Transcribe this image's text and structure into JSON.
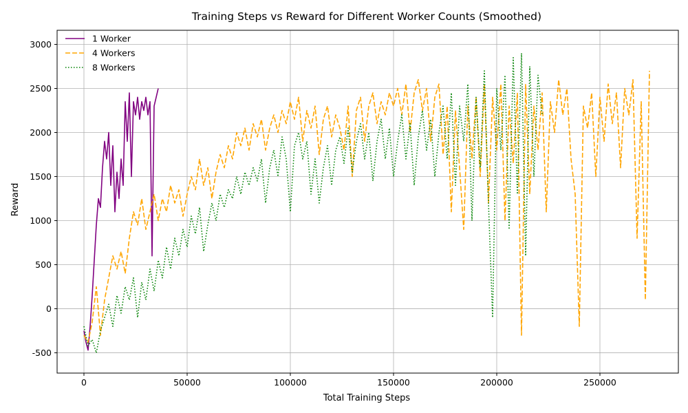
{
  "chart_data": {
    "type": "line",
    "title": "Training Steps vs Reward for Different Worker Counts (Smoothed)",
    "xlabel": "Total Training Steps",
    "ylabel": "Reward",
    "xlim": [
      -13000,
      288000
    ],
    "ylim": [
      -730,
      3160
    ],
    "xticks": [
      0,
      50000,
      100000,
      150000,
      200000,
      250000
    ],
    "yticks": [
      -500,
      0,
      500,
      1000,
      1500,
      2000,
      2500,
      3000
    ],
    "grid": true,
    "legend_position": "top-left",
    "series": [
      {
        "name": "1 Worker",
        "color": "#800080",
        "style": "solid",
        "points": [
          [
            0,
            -250
          ],
          [
            1000,
            -380
          ],
          [
            2000,
            -470
          ],
          [
            3000,
            -200
          ],
          [
            4000,
            150
          ],
          [
            5000,
            550
          ],
          [
            6000,
            950
          ],
          [
            7000,
            1250
          ],
          [
            8000,
            1150
          ],
          [
            9000,
            1600
          ],
          [
            10000,
            1900
          ],
          [
            11000,
            1700
          ],
          [
            12000,
            2000
          ],
          [
            13000,
            1400
          ],
          [
            14000,
            1850
          ],
          [
            15000,
            1100
          ],
          [
            16000,
            1550
          ],
          [
            17000,
            1250
          ],
          [
            18000,
            1700
          ],
          [
            19000,
            1400
          ],
          [
            20000,
            2350
          ],
          [
            21000,
            1900
          ],
          [
            22000,
            2450
          ],
          [
            23000,
            1500
          ],
          [
            24000,
            2350
          ],
          [
            25000,
            2200
          ],
          [
            26000,
            2400
          ],
          [
            27000,
            2150
          ],
          [
            28000,
            2350
          ],
          [
            29000,
            2250
          ],
          [
            30000,
            2400
          ],
          [
            31000,
            2200
          ],
          [
            32000,
            2350
          ],
          [
            33000,
            600
          ],
          [
            34000,
            2300
          ],
          [
            35000,
            2400
          ],
          [
            36000,
            2500
          ]
        ]
      },
      {
        "name": "4 Workers",
        "color": "#ffa500",
        "style": "dashed",
        "points": [
          [
            0,
            -300
          ],
          [
            2000,
            -380
          ],
          [
            4000,
            -150
          ],
          [
            6000,
            250
          ],
          [
            8000,
            -300
          ],
          [
            10000,
            100
          ],
          [
            12000,
            350
          ],
          [
            14000,
            600
          ],
          [
            16000,
            450
          ],
          [
            18000,
            650
          ],
          [
            20000,
            400
          ],
          [
            22000,
            800
          ],
          [
            24000,
            1100
          ],
          [
            26000,
            950
          ],
          [
            28000,
            1250
          ],
          [
            30000,
            900
          ],
          [
            32000,
            1100
          ],
          [
            34000,
            1300
          ],
          [
            36000,
            1000
          ],
          [
            38000,
            1250
          ],
          [
            40000,
            1100
          ],
          [
            42000,
            1400
          ],
          [
            44000,
            1200
          ],
          [
            46000,
            1350
          ],
          [
            48000,
            1050
          ],
          [
            50000,
            1300
          ],
          [
            52000,
            1500
          ],
          [
            54000,
            1350
          ],
          [
            56000,
            1700
          ],
          [
            58000,
            1400
          ],
          [
            60000,
            1600
          ],
          [
            62000,
            1250
          ],
          [
            64000,
            1550
          ],
          [
            66000,
            1750
          ],
          [
            68000,
            1600
          ],
          [
            70000,
            1850
          ],
          [
            72000,
            1700
          ],
          [
            74000,
            2000
          ],
          [
            76000,
            1850
          ],
          [
            78000,
            2050
          ],
          [
            80000,
            1800
          ],
          [
            82000,
            2100
          ],
          [
            84000,
            1950
          ],
          [
            86000,
            2150
          ],
          [
            88000,
            1800
          ],
          [
            90000,
            2050
          ],
          [
            92000,
            2200
          ],
          [
            94000,
            2000
          ],
          [
            96000,
            2250
          ],
          [
            98000,
            2100
          ],
          [
            100000,
            2350
          ],
          [
            102000,
            2150
          ],
          [
            104000,
            2400
          ],
          [
            106000,
            1900
          ],
          [
            108000,
            2250
          ],
          [
            110000,
            2050
          ],
          [
            112000,
            2300
          ],
          [
            114000,
            1750
          ],
          [
            116000,
            2150
          ],
          [
            118000,
            2300
          ],
          [
            120000,
            1950
          ],
          [
            122000,
            2200
          ],
          [
            124000,
            2050
          ],
          [
            126000,
            1800
          ],
          [
            128000,
            2300
          ],
          [
            130000,
            1500
          ],
          [
            132000,
            2250
          ],
          [
            134000,
            2400
          ],
          [
            136000,
            1900
          ],
          [
            138000,
            2300
          ],
          [
            140000,
            2450
          ],
          [
            142000,
            2100
          ],
          [
            144000,
            2350
          ],
          [
            146000,
            2200
          ],
          [
            148000,
            2450
          ],
          [
            150000,
            2300
          ],
          [
            152000,
            2500
          ],
          [
            154000,
            2200
          ],
          [
            156000,
            2550
          ],
          [
            158000,
            2000
          ],
          [
            160000,
            2450
          ],
          [
            162000,
            2600
          ],
          [
            164000,
            2250
          ],
          [
            166000,
            2500
          ],
          [
            168000,
            1900
          ],
          [
            170000,
            2400
          ],
          [
            172000,
            2550
          ],
          [
            174000,
            1750
          ],
          [
            176000,
            2300
          ],
          [
            178000,
            1100
          ],
          [
            180000,
            2250
          ],
          [
            182000,
            1600
          ],
          [
            184000,
            900
          ],
          [
            186000,
            2300
          ],
          [
            188000,
            1700
          ],
          [
            190000,
            2400
          ],
          [
            192000,
            1500
          ],
          [
            194000,
            2550
          ],
          [
            196000,
            1200
          ],
          [
            198000,
            2400
          ],
          [
            200000,
            1800
          ],
          [
            202000,
            2550
          ],
          [
            204000,
            1000
          ],
          [
            206000,
            2300
          ],
          [
            208000,
            1650
          ],
          [
            210000,
            2450
          ],
          [
            212000,
            -300
          ],
          [
            214000,
            2550
          ],
          [
            216000,
            1300
          ],
          [
            218000,
            2300
          ],
          [
            220000,
            1800
          ],
          [
            222000,
            2450
          ],
          [
            224000,
            1100
          ],
          [
            226000,
            2350
          ],
          [
            228000,
            2000
          ],
          [
            230000,
            2600
          ],
          [
            232000,
            2200
          ],
          [
            234000,
            2500
          ],
          [
            236000,
            1700
          ],
          [
            238000,
            1300
          ],
          [
            240000,
            -200
          ],
          [
            242000,
            2300
          ],
          [
            244000,
            2050
          ],
          [
            246000,
            2450
          ],
          [
            248000,
            1500
          ],
          [
            250000,
            2400
          ],
          [
            252000,
            1900
          ],
          [
            254000,
            2550
          ],
          [
            256000,
            2100
          ],
          [
            258000,
            2450
          ],
          [
            260000,
            1600
          ],
          [
            262000,
            2500
          ],
          [
            264000,
            2200
          ],
          [
            266000,
            2600
          ],
          [
            268000,
            800
          ],
          [
            270000,
            2350
          ],
          [
            272000,
            100
          ],
          [
            274000,
            2700
          ]
        ]
      },
      {
        "name": "8 Workers",
        "color": "#008000",
        "style": "dotted",
        "points": [
          [
            0,
            -200
          ],
          [
            2000,
            -420
          ],
          [
            4000,
            -350
          ],
          [
            6000,
            -500
          ],
          [
            8000,
            -250
          ],
          [
            10000,
            -100
          ],
          [
            12000,
            50
          ],
          [
            14000,
            -200
          ],
          [
            16000,
            150
          ],
          [
            18000,
            -50
          ],
          [
            20000,
            250
          ],
          [
            22000,
            100
          ],
          [
            24000,
            350
          ],
          [
            26000,
            -100
          ],
          [
            28000,
            300
          ],
          [
            30000,
            100
          ],
          [
            32000,
            450
          ],
          [
            34000,
            200
          ],
          [
            36000,
            550
          ],
          [
            38000,
            350
          ],
          [
            40000,
            700
          ],
          [
            42000,
            450
          ],
          [
            44000,
            800
          ],
          [
            46000,
            600
          ],
          [
            48000,
            900
          ],
          [
            50000,
            700
          ],
          [
            52000,
            1050
          ],
          [
            54000,
            850
          ],
          [
            56000,
            1150
          ],
          [
            58000,
            650
          ],
          [
            60000,
            950
          ],
          [
            62000,
            1200
          ],
          [
            64000,
            1000
          ],
          [
            66000,
            1300
          ],
          [
            68000,
            1150
          ],
          [
            70000,
            1350
          ],
          [
            72000,
            1250
          ],
          [
            74000,
            1500
          ],
          [
            76000,
            1300
          ],
          [
            78000,
            1550
          ],
          [
            80000,
            1400
          ],
          [
            82000,
            1600
          ],
          [
            84000,
            1450
          ],
          [
            86000,
            1700
          ],
          [
            88000,
            1200
          ],
          [
            90000,
            1600
          ],
          [
            92000,
            1800
          ],
          [
            94000,
            1500
          ],
          [
            96000,
            1950
          ],
          [
            98000,
            1700
          ],
          [
            100000,
            1100
          ],
          [
            102000,
            1850
          ],
          [
            104000,
            2000
          ],
          [
            106000,
            1700
          ],
          [
            108000,
            1900
          ],
          [
            110000,
            1300
          ],
          [
            112000,
            1700
          ],
          [
            114000,
            1200
          ],
          [
            116000,
            1600
          ],
          [
            118000,
            1850
          ],
          [
            120000,
            1400
          ],
          [
            122000,
            1800
          ],
          [
            124000,
            1950
          ],
          [
            126000,
            1650
          ],
          [
            128000,
            2050
          ],
          [
            130000,
            1550
          ],
          [
            132000,
            1900
          ],
          [
            134000,
            2100
          ],
          [
            136000,
            1700
          ],
          [
            138000,
            2000
          ],
          [
            140000,
            1450
          ],
          [
            142000,
            1900
          ],
          [
            144000,
            2150
          ],
          [
            146000,
            1700
          ],
          [
            148000,
            2050
          ],
          [
            150000,
            1500
          ],
          [
            152000,
            1900
          ],
          [
            154000,
            2200
          ],
          [
            156000,
            1700
          ],
          [
            158000,
            2100
          ],
          [
            160000,
            1400
          ],
          [
            162000,
            1950
          ],
          [
            164000,
            2250
          ],
          [
            166000,
            1800
          ],
          [
            168000,
            2150
          ],
          [
            170000,
            1500
          ],
          [
            172000,
            2000
          ],
          [
            174000,
            2300
          ],
          [
            176000,
            1700
          ],
          [
            178000,
            2450
          ],
          [
            180000,
            1400
          ],
          [
            182000,
            2300
          ],
          [
            184000,
            1900
          ],
          [
            186000,
            2550
          ],
          [
            188000,
            1000
          ],
          [
            190000,
            2400
          ],
          [
            192000,
            1600
          ],
          [
            194000,
            2700
          ],
          [
            196000,
            1200
          ],
          [
            198000,
            -100
          ],
          [
            200000,
            2500
          ],
          [
            202000,
            1800
          ],
          [
            204000,
            2650
          ],
          [
            206000,
            900
          ],
          [
            208000,
            2850
          ],
          [
            210000,
            1300
          ],
          [
            212000,
            2900
          ],
          [
            214000,
            600
          ],
          [
            216000,
            2750
          ],
          [
            218000,
            1500
          ],
          [
            220000,
            2650
          ],
          [
            222000,
            2200
          ]
        ]
      }
    ]
  }
}
